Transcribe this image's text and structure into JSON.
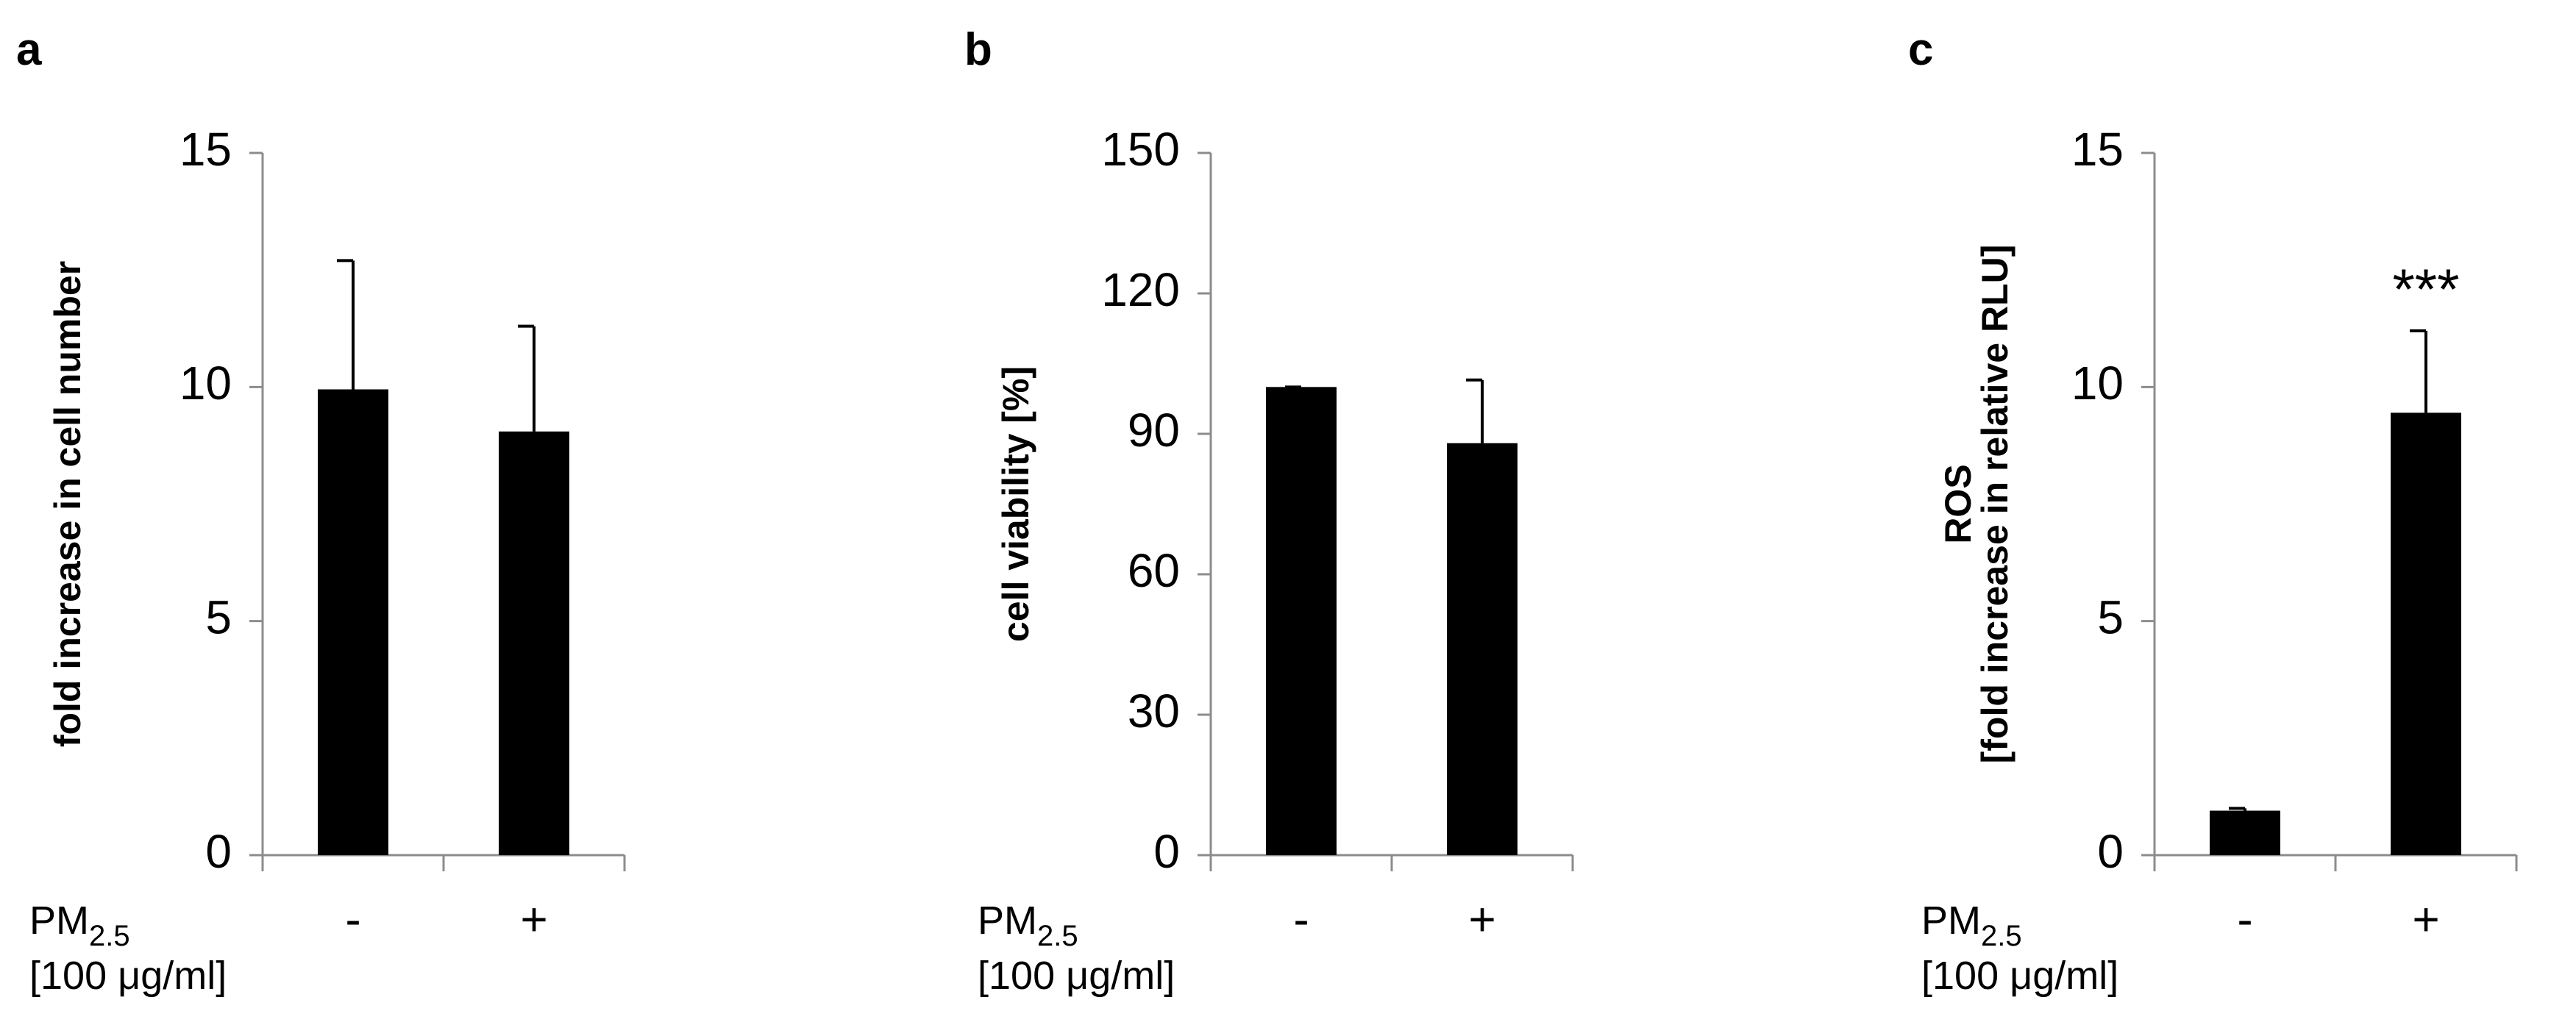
{
  "chart_data": [
    {
      "type": "bar",
      "panel": "a",
      "y_label": "fold increase in cell number",
      "categories": [
        "-",
        "+"
      ],
      "values": [
        9.95,
        9.05
      ],
      "errors": [
        2.75,
        2.25
      ],
      "color": "#000000",
      "ylim": [
        0,
        15
      ],
      "yticks": [
        0,
        5,
        10,
        15
      ],
      "x_label": "PM",
      "x_label_subscript": "2.5",
      "x_label_line2": "[100 μg/ml]"
    },
    {
      "type": "bar",
      "panel": "b",
      "y_label": "cell viability  [%]",
      "categories": [
        "-",
        "+"
      ],
      "values": [
        100,
        88
      ],
      "errors": [
        0,
        13.5
      ],
      "color": "#000000",
      "ylim": [
        0,
        150
      ],
      "yticks": [
        0,
        30,
        60,
        90,
        120,
        150
      ],
      "x_label": "PM",
      "x_label_subscript": "2.5",
      "x_label_line2": "[100 μg/ml]"
    },
    {
      "type": "bar",
      "panel": "c",
      "y_label": "ROS",
      "y_label_2": "[fold increase in relative RLU]",
      "categories": [
        "-",
        "+"
      ],
      "values": [
        0.95,
        9.45
      ],
      "errors": [
        0.05,
        1.75
      ],
      "color": "#000000",
      "ylim": [
        0,
        15
      ],
      "yticks": [
        0,
        5,
        10,
        15
      ],
      "annotation": "***",
      "x_label": "PM",
      "x_label_subscript": "2.5",
      "x_label_line2": "[100 μg/ml]"
    }
  ]
}
